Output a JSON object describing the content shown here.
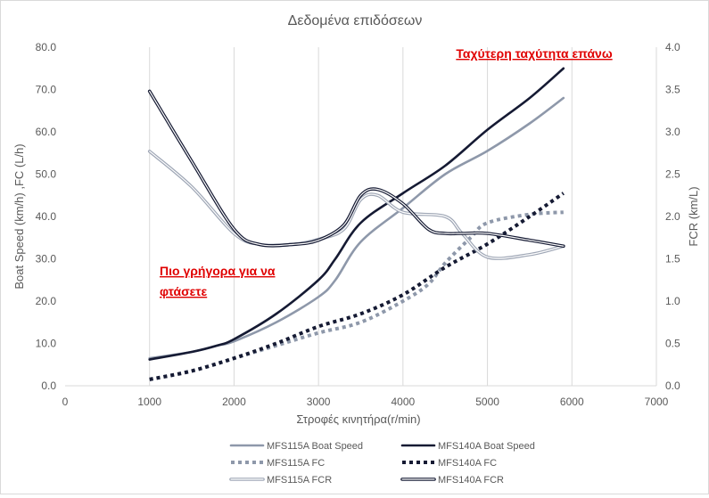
{
  "chart_data": {
    "type": "line",
    "title": "Δεδομένα επιδόσεων",
    "xlabel": "Στροφές κινητήρα(r/min)",
    "ylabel_left": "Boat Speed (km/h) ,FC (L/h)",
    "ylabel_right": "FCR (km/L)",
    "xlim": [
      0,
      7000
    ],
    "ylim_left": [
      0,
      80
    ],
    "ylim_right": [
      0,
      4
    ],
    "x_ticks": [
      "0",
      "1000",
      "2000",
      "3000",
      "4000",
      "5000",
      "6000",
      "7000"
    ],
    "y_left_ticks": [
      "0.0",
      "10.0",
      "20.0",
      "30.0",
      "40.0",
      "50.0",
      "60.0",
      "70.0",
      "80.0"
    ],
    "y_right_ticks": [
      "0.0",
      "0.5",
      "1.0",
      "1.5",
      "2.0",
      "2.5",
      "3.0",
      "3.5",
      "4.0"
    ],
    "grid": "vertical",
    "legend_position": "bottom",
    "annotations": [
      {
        "text": "Ταχύτερη ταχύτητα επάνω",
        "color": "#e00000"
      },
      {
        "text_lines": [
          "Πιο γρήγορα για να",
          "φτάσετε"
        ],
        "color": "#e00000"
      }
    ],
    "series": [
      {
        "name": "MFS115A Boat Speed",
        "axis": "left",
        "style": "solid",
        "color": "#8e98aa",
        "x": [
          1000,
          1500,
          1800,
          2000,
          2500,
          3000,
          3200,
          3500,
          4000,
          4500,
          5000,
          5500,
          5900
        ],
        "y": [
          6.5,
          8.0,
          9.5,
          10.5,
          15.0,
          21.0,
          25.0,
          34.0,
          42.0,
          50.0,
          55.5,
          62.0,
          68.0
        ]
      },
      {
        "name": "MFS140A Boat Speed",
        "axis": "left",
        "style": "solid",
        "color": "#151a33",
        "x": [
          1000,
          1500,
          1800,
          2000,
          2500,
          3000,
          3200,
          3500,
          4000,
          4500,
          5000,
          5500,
          5900
        ],
        "y": [
          6.2,
          8.0,
          9.5,
          11.0,
          17.0,
          25.0,
          30.0,
          38.5,
          45.5,
          52.0,
          60.5,
          68.0,
          75.0
        ]
      },
      {
        "name": "MFS115A FC",
        "axis": "left",
        "style": "dotted",
        "color": "#8e98aa",
        "x": [
          1000,
          1500,
          2000,
          2500,
          3000,
          3500,
          4000,
          4300,
          4500,
          4800,
          5000,
          5500,
          5900
        ],
        "y": [
          1.5,
          3.5,
          6.5,
          9.5,
          12.5,
          15.0,
          20.0,
          24.0,
          29.0,
          35.0,
          38.5,
          40.5,
          41.0
        ]
      },
      {
        "name": "MFS140A FC",
        "axis": "left",
        "style": "dotted",
        "color": "#151a33",
        "x": [
          1000,
          1500,
          2000,
          2500,
          3000,
          3500,
          4000,
          4500,
          5000,
          5500,
          5900
        ],
        "y": [
          1.5,
          3.5,
          6.5,
          10.0,
          14.0,
          17.0,
          21.5,
          28.0,
          33.5,
          40.0,
          45.5
        ]
      },
      {
        "name": "MFS115A FCR",
        "axis": "right",
        "style": "double",
        "color": "#9ea6b5",
        "x": [
          1000,
          1500,
          2000,
          2300,
          2700,
          3000,
          3300,
          3500,
          3700,
          4000,
          4500,
          4700,
          5000,
          5500,
          5900
        ],
        "y": [
          2.77,
          2.35,
          1.8,
          1.67,
          1.67,
          1.73,
          1.85,
          2.2,
          2.25,
          2.05,
          2.0,
          1.8,
          1.52,
          1.55,
          1.65
        ]
      },
      {
        "name": "MFS140A FCR",
        "axis": "right",
        "style": "double",
        "color": "#151a33",
        "x": [
          1000,
          1500,
          2000,
          2300,
          2700,
          3000,
          3300,
          3500,
          3700,
          4000,
          4300,
          4500,
          4700,
          5000,
          5500,
          5900
        ],
        "y": [
          3.48,
          2.65,
          1.85,
          1.67,
          1.67,
          1.72,
          1.9,
          2.25,
          2.32,
          2.15,
          1.85,
          1.8,
          1.8,
          1.8,
          1.72,
          1.65
        ]
      }
    ]
  }
}
